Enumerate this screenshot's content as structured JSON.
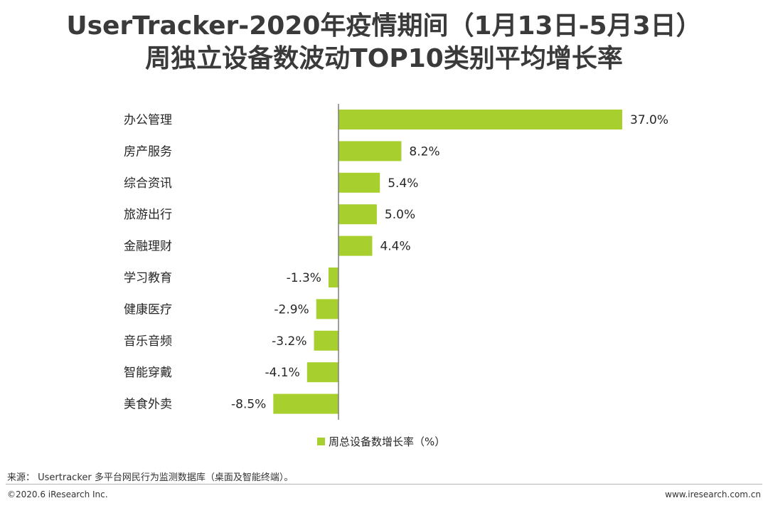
{
  "chart_data": {
    "type": "bar",
    "orientation": "horizontal",
    "title": [
      "UserTracker-2020年疫情期间（1月13日-5月3日）",
      "周独立设备数波动TOP10类别平均增长率"
    ],
    "categories": [
      "办公管理",
      "房产服务",
      "综合资讯",
      "旅游出行",
      "金融理财",
      "学习教育",
      "健康医疗",
      "音乐音频",
      "智能穿戴",
      "美食外卖"
    ],
    "series": [
      {
        "name": "周总设备数增长率（%）",
        "values": [
          37.0,
          8.2,
          5.4,
          5.0,
          4.4,
          -1.3,
          -2.9,
          -3.2,
          -4.1,
          -8.5
        ]
      }
    ],
    "value_labels": [
      "37.0%",
      "8.2%",
      "5.4%",
      "5.0%",
      "4.4%",
      "-1.3%",
      "-2.9%",
      "-3.2%",
      "-4.1%",
      "-8.5%"
    ],
    "xlim": [
      -8.5,
      37.0
    ],
    "legend_position": "bottom",
    "bar_color": "#a7cf2e",
    "axis_color": "#7f7f7f"
  },
  "footer": {
    "source": "来源： Usertracker 多平台网民行为监测数据库（桌面及智能终端）。",
    "copyright": "©2020.6 iResearch Inc.",
    "website": "www.iresearch.com.cn"
  }
}
